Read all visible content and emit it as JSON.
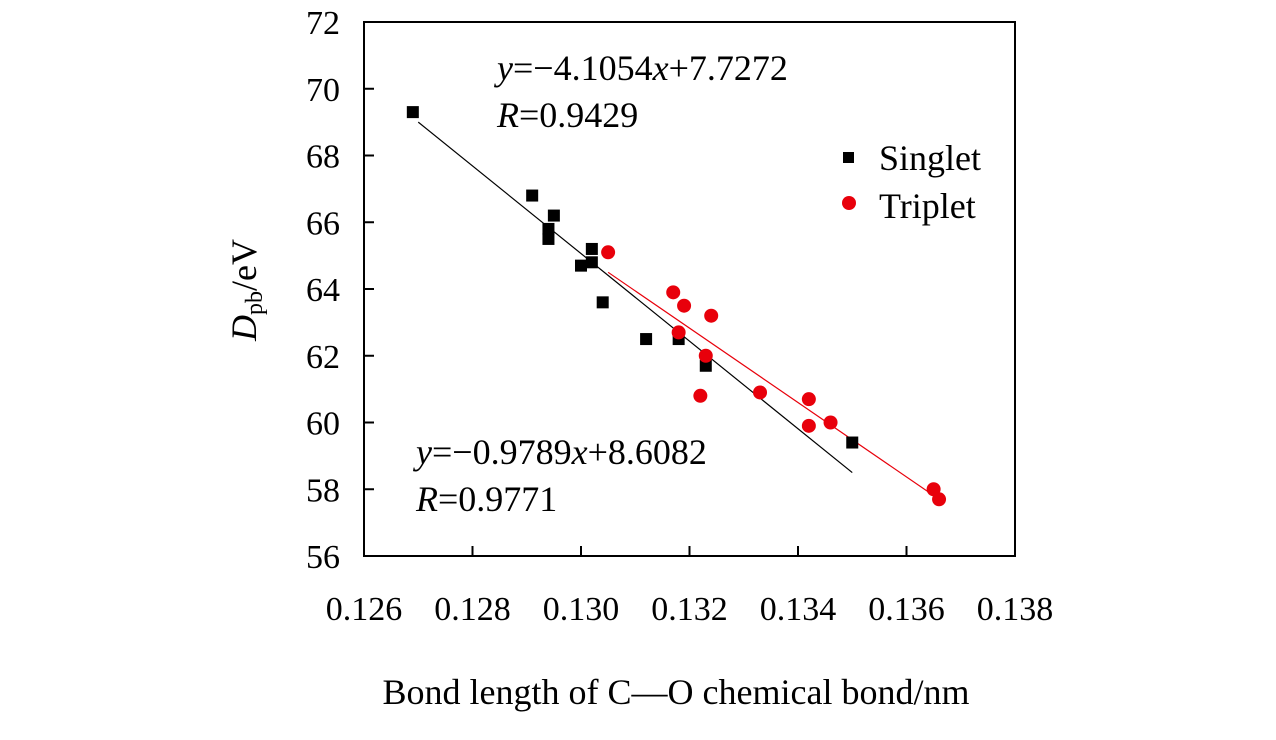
{
  "chart_data": {
    "type": "scatter",
    "title": "",
    "xlabel": "Bond length of C—O chemical bond/nm",
    "ylabel_main": "D",
    "ylabel_sub": "pb",
    "ylabel_rest": "/eV",
    "xlim": [
      0.126,
      0.138
    ],
    "ylim": [
      56,
      72
    ],
    "x_ticks": [
      0.126,
      0.128,
      0.13,
      0.132,
      0.134,
      0.136,
      0.138
    ],
    "x_tick_labels": [
      "0.126",
      "0.128",
      "0.130",
      "0.132",
      "0.134",
      "0.136",
      "0.138"
    ],
    "y_ticks": [
      56,
      58,
      60,
      62,
      64,
      66,
      68,
      70,
      72
    ],
    "y_tick_labels": [
      "56",
      "58",
      "60",
      "62",
      "64",
      "66",
      "68",
      "70",
      "72"
    ],
    "grid": false,
    "legend_position": "top-right",
    "series": [
      {
        "name": "Singlet",
        "marker": "square",
        "color": "#000000",
        "line_color": "#000000",
        "fit": {
          "x": [
            0.127,
            0.135
          ],
          "y": [
            69.0,
            58.5
          ]
        },
        "points": [
          [
            0.1269,
            69.3
          ],
          [
            0.1291,
            66.8
          ],
          [
            0.1295,
            66.2
          ],
          [
            0.1294,
            65.8
          ],
          [
            0.1294,
            65.5
          ],
          [
            0.1302,
            65.2
          ],
          [
            0.1302,
            64.8
          ],
          [
            0.13,
            64.7
          ],
          [
            0.1304,
            63.6
          ],
          [
            0.1312,
            62.5
          ],
          [
            0.1318,
            62.5
          ],
          [
            0.1323,
            61.7
          ],
          [
            0.135,
            59.4
          ]
        ]
      },
      {
        "name": "Triplet",
        "marker": "circle",
        "color": "#e8000b",
        "line_color": "#e8000b",
        "fit": {
          "x": [
            0.1305,
            0.1366
          ],
          "y": [
            64.5,
            57.7
          ]
        },
        "points": [
          [
            0.1305,
            65.1
          ],
          [
            0.1317,
            63.9
          ],
          [
            0.1319,
            63.5
          ],
          [
            0.1324,
            63.2
          ],
          [
            0.1318,
            62.7
          ],
          [
            0.1323,
            62.0
          ],
          [
            0.1322,
            60.8
          ],
          [
            0.1333,
            60.9
          ],
          [
            0.1342,
            60.7
          ],
          [
            0.1346,
            60.0
          ],
          [
            0.1342,
            59.9
          ],
          [
            0.1365,
            58.0
          ],
          [
            0.1366,
            57.7
          ]
        ]
      }
    ],
    "annotations": [
      {
        "y_letter": "y",
        "eq": "=−4.1054",
        "x_letter": "x",
        "rest": "+7.7272",
        "r_letter": "R",
        "r_value": "=0.9429"
      },
      {
        "y_letter": "y",
        "eq": "=−0.9789",
        "x_letter": "x",
        "rest": "+8.6082",
        "r_letter": "R",
        "r_value": "=0.9771"
      }
    ]
  }
}
